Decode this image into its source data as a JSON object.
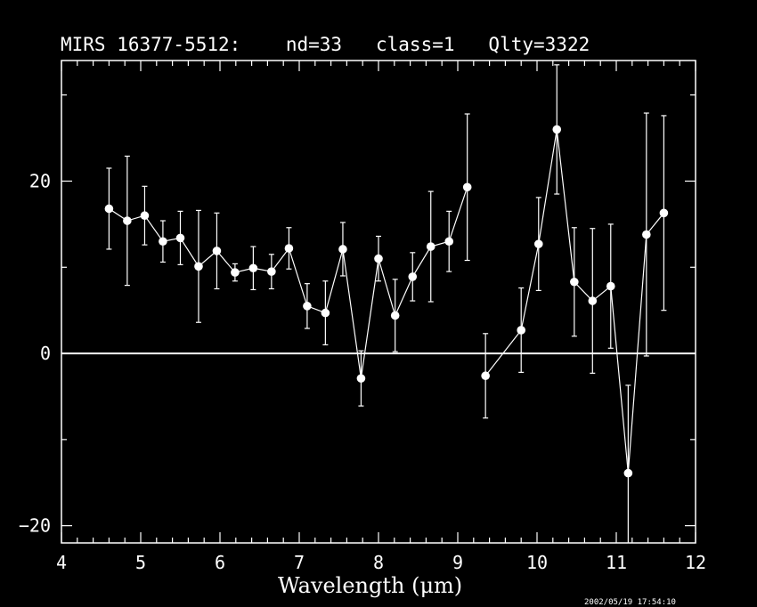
{
  "chart_data": {
    "type": "scatter",
    "title": "MIRS 16377-5512:    nd=33   class=1   Qlty=3322",
    "xlabel": "Wavelength (μm)",
    "ylabel": "",
    "xlim": [
      4,
      12
    ],
    "ylim": [
      -22,
      34
    ],
    "x_ticks": [
      4,
      5,
      6,
      7,
      8,
      9,
      10,
      11,
      12
    ],
    "y_ticks": [
      -20,
      0,
      20
    ],
    "grid": false,
    "zero_line": 0,
    "connected_segments": [
      [
        0,
        20
      ],
      [
        21,
        31
      ]
    ],
    "points": [
      {
        "x": 4.6,
        "y": 16.8,
        "err": 4.7
      },
      {
        "x": 4.83,
        "y": 15.4,
        "err": 7.5
      },
      {
        "x": 5.05,
        "y": 16.0,
        "err": 3.4
      },
      {
        "x": 5.28,
        "y": 13.0,
        "err": 2.4
      },
      {
        "x": 5.5,
        "y": 13.4,
        "err": 3.1
      },
      {
        "x": 5.73,
        "y": 10.1,
        "err": 6.5
      },
      {
        "x": 5.96,
        "y": 11.9,
        "err": 4.4
      },
      {
        "x": 6.19,
        "y": 9.4,
        "err": 1.0
      },
      {
        "x": 6.42,
        "y": 9.9,
        "err": 2.5
      },
      {
        "x": 6.65,
        "y": 9.5,
        "err": 2.0
      },
      {
        "x": 6.87,
        "y": 12.2,
        "err": 2.4
      },
      {
        "x": 7.1,
        "y": 5.5,
        "err": 2.6
      },
      {
        "x": 7.33,
        "y": 4.7,
        "err": 3.7
      },
      {
        "x": 7.55,
        "y": 12.1,
        "err": 3.1
      },
      {
        "x": 7.78,
        "y": -2.9,
        "err": 3.2
      },
      {
        "x": 8.0,
        "y": 11.0,
        "err": 2.6
      },
      {
        "x": 8.21,
        "y": 4.4,
        "err": 4.2
      },
      {
        "x": 8.43,
        "y": 8.9,
        "err": 2.8
      },
      {
        "x": 8.66,
        "y": 12.4,
        "err": 6.4
      },
      {
        "x": 8.89,
        "y": 13.0,
        "err": 3.5
      },
      {
        "x": 9.12,
        "y": 19.3,
        "err": 8.5
      },
      {
        "x": 9.35,
        "y": -2.6,
        "err": 4.9
      },
      {
        "x": 9.8,
        "y": 2.7,
        "err": 4.9
      },
      {
        "x": 10.02,
        "y": 12.7,
        "err": 5.4
      },
      {
        "x": 10.25,
        "y": 26.0,
        "err": 7.5
      },
      {
        "x": 10.47,
        "y": 8.3,
        "err": 6.3
      },
      {
        "x": 10.7,
        "y": 6.1,
        "err": 8.4
      },
      {
        "x": 10.93,
        "y": 7.8,
        "err": 7.2
      },
      {
        "x": 11.15,
        "y": -13.9,
        "err": 10.2
      },
      {
        "x": 11.38,
        "y": 13.8,
        "err": 14.1
      },
      {
        "x": 11.6,
        "y": 16.3,
        "err": 11.3
      }
    ],
    "footer_stamp": "2002/05/19 17:54:10"
  }
}
